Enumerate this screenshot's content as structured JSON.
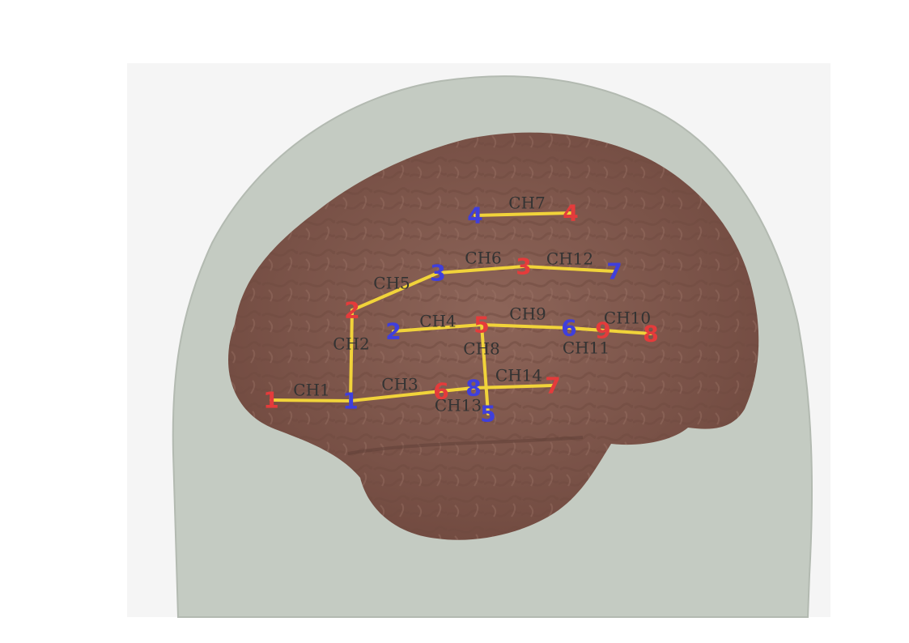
{
  "colors": {
    "background": "#ffffff",
    "panel": "#f5f5f5",
    "head": "#c4cbc2",
    "brain": "#8a6457",
    "channel_line": "#f1d33a",
    "source": "#e43b3b",
    "detector": "#3f3fdc",
    "label": "#333333"
  },
  "sources": [
    {
      "id": "1",
      "label": "1"
    },
    {
      "id": "2",
      "label": "2"
    },
    {
      "id": "3",
      "label": "3"
    },
    {
      "id": "4",
      "label": "4"
    },
    {
      "id": "5",
      "label": "5"
    },
    {
      "id": "6",
      "label": "6"
    },
    {
      "id": "7",
      "label": "7"
    },
    {
      "id": "8",
      "label": "8"
    },
    {
      "id": "9",
      "label": "9"
    }
  ],
  "detectors": [
    {
      "id": "1",
      "label": "1"
    },
    {
      "id": "2",
      "label": "2"
    },
    {
      "id": "3",
      "label": "3"
    },
    {
      "id": "4",
      "label": "4"
    },
    {
      "id": "5",
      "label": "5"
    },
    {
      "id": "6",
      "label": "6"
    },
    {
      "id": "7",
      "label": "7"
    },
    {
      "id": "8",
      "label": "8"
    }
  ],
  "channels": [
    {
      "label": "CH1",
      "source": "1",
      "detector": "1"
    },
    {
      "label": "CH2",
      "source": "2",
      "detector": "1"
    },
    {
      "label": "CH3",
      "source": "6",
      "detector": "1"
    },
    {
      "label": "CH4",
      "source": "5",
      "detector": "2"
    },
    {
      "label": "CH5",
      "source": "2",
      "detector": "3"
    },
    {
      "label": "CH6",
      "source": "3",
      "detector": "3"
    },
    {
      "label": "CH7",
      "source": "4",
      "detector": "4"
    },
    {
      "label": "CH8",
      "source": "5",
      "detector": "5"
    },
    {
      "label": "CH9",
      "source": "5",
      "detector": "6"
    },
    {
      "label": "CH10",
      "source": "8",
      "detector": "6"
    },
    {
      "label": "CH11",
      "source": "9",
      "detector": "6"
    },
    {
      "label": "CH12",
      "source": "3",
      "detector": "7"
    },
    {
      "label": "CH13",
      "source": "6",
      "detector": "8"
    },
    {
      "label": "CH14",
      "source": "7",
      "detector": "8"
    }
  ]
}
